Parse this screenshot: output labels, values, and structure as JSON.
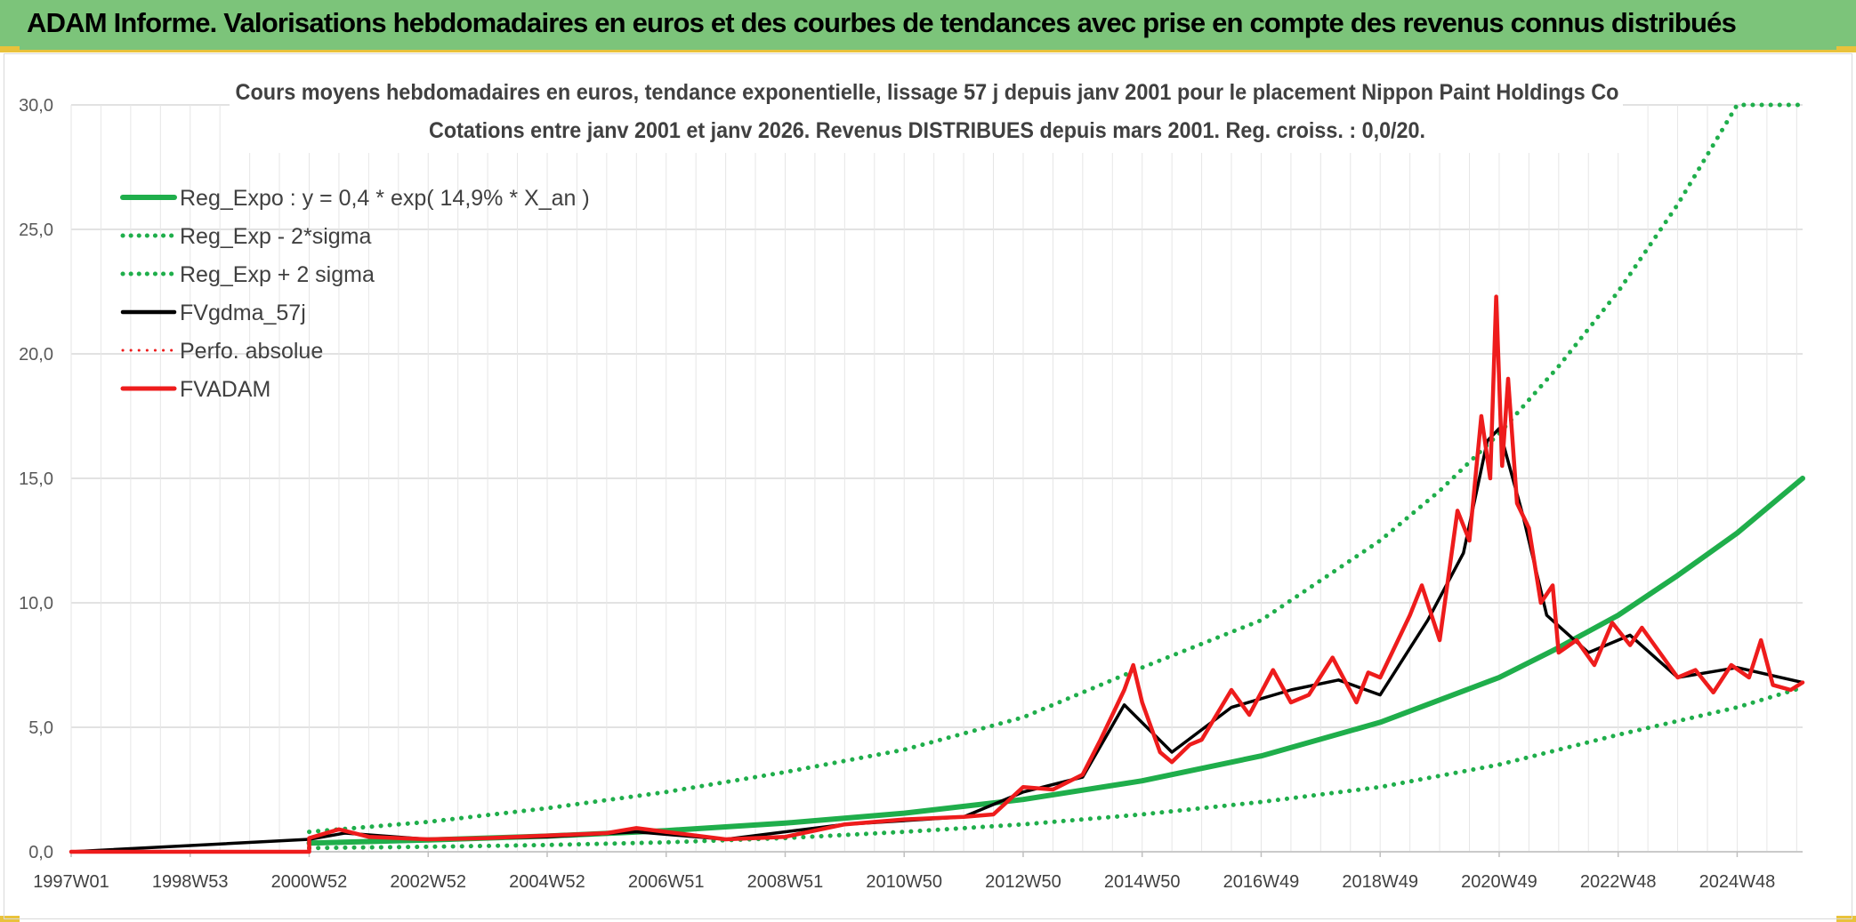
{
  "banner": {
    "text": "ADAM Informe. Valorisations hebdomadaires en euros et des courbes de tendances avec prise en compte des revenus connus distribués"
  },
  "colors": {
    "banner_bg": "#7cc47a",
    "accent_yellow": "#e9c23b",
    "reg_green": "#1fae4b",
    "price_red": "#ee1c1c",
    "smooth_black": "#000000",
    "grid": "#d9d9d9"
  },
  "chart_data": {
    "type": "line",
    "title_lines": [
      "Cours moyens hebdomadaires en euros, tendance exponentielle, lissage 57 j depuis janv 2001 pour le placement Nippon Paint Holdings Co",
      "Cotations entre janv 2001 et janv 2026. Revenus DISTRIBUES depuis mars 2001. Reg. croiss. : 0,0/20."
    ],
    "xlabel": "",
    "ylabel": "",
    "xlim": [
      1997.0,
      2026.1
    ],
    "ylim": [
      0,
      30
    ],
    "y_ticks": [
      "0,0",
      "5,0",
      "10,0",
      "15,0",
      "20,0",
      "25,0",
      "30,0"
    ],
    "x_tick_labels": [
      "1997W01",
      "1998W53",
      "2000W52",
      "2002W52",
      "2004W52",
      "2006W51",
      "2008W51",
      "2010W50",
      "2012W50",
      "2014W50",
      "2016W49",
      "2018W49",
      "2020W49",
      "2022W48",
      "2024W48"
    ],
    "x_tick_years": [
      1997.0,
      1999.0,
      2001.0,
      2003.0,
      2005.0,
      2007.0,
      2009.0,
      2011.0,
      2013.0,
      2015.0,
      2017.0,
      2019.0,
      2021.0,
      2023.0,
      2025.0
    ],
    "grid": true,
    "legend_position": "top-left",
    "series": [
      {
        "name": "Reg_Expo : y = 0,4 * exp( 14,9% *  X_an )",
        "style": "solid",
        "color": "#1fae4b",
        "x": [
          2001.0,
          2003.0,
          2005.0,
          2007.0,
          2009.0,
          2011.0,
          2013.0,
          2015.0,
          2017.0,
          2019.0,
          2021.0,
          2022.0,
          2023.0,
          2024.0,
          2025.0,
          2026.1
        ],
        "y": [
          0.35,
          0.47,
          0.63,
          0.85,
          1.15,
          1.55,
          2.1,
          2.85,
          3.85,
          5.2,
          7.0,
          8.2,
          9.5,
          11.1,
          12.8,
          15.0
        ]
      },
      {
        "name": "Reg_Exp - 2*sigma",
        "style": "dotted",
        "color": "#1fae4b",
        "x": [
          2001.0,
          2003.0,
          2005.0,
          2007.0,
          2009.0,
          2011.0,
          2013.0,
          2015.0,
          2017.0,
          2019.0,
          2021.0,
          2023.0,
          2025.0,
          2026.1
        ],
        "y": [
          0.15,
          0.2,
          0.27,
          0.38,
          0.55,
          0.8,
          1.1,
          1.5,
          2.0,
          2.6,
          3.5,
          4.7,
          5.8,
          6.6
        ]
      },
      {
        "name": "Reg_Exp + 2 sigma",
        "style": "dotted",
        "color": "#1fae4b",
        "x": [
          2001.0,
          2003.0,
          2005.0,
          2007.0,
          2009.0,
          2011.0,
          2013.0,
          2015.0,
          2017.0,
          2019.0,
          2020.0,
          2021.0,
          2022.0,
          2023.0,
          2024.0,
          2025.0,
          2026.1
        ],
        "y": [
          0.8,
          1.2,
          1.75,
          2.4,
          3.2,
          4.1,
          5.4,
          7.4,
          9.3,
          12.5,
          14.5,
          16.8,
          19.5,
          22.5,
          26.0,
          30.0,
          30.0
        ]
      },
      {
        "name": "FVgdma_57j",
        "style": "solid",
        "color": "#000000",
        "x": [
          1997.0,
          2001.0,
          2001.6,
          2003.0,
          2005.0,
          2006.5,
          2008.0,
          2010.0,
          2012.0,
          2013.0,
          2014.0,
          2014.7,
          2015.5,
          2016.5,
          2017.5,
          2018.3,
          2019.0,
          2019.8,
          2020.4,
          2020.8,
          2021.0,
          2021.4,
          2021.8,
          2022.5,
          2023.2,
          2024.0,
          2025.0,
          2026.1
        ],
        "y": [
          0.0,
          0.5,
          0.75,
          0.5,
          0.6,
          0.8,
          0.5,
          1.1,
          1.4,
          2.4,
          3.0,
          5.9,
          4.0,
          5.8,
          6.5,
          6.9,
          6.3,
          9.3,
          12.0,
          16.5,
          17.0,
          13.5,
          9.5,
          8.0,
          8.7,
          7.0,
          7.4,
          6.8
        ]
      },
      {
        "name": "Perfo. absolue",
        "style": "dotted",
        "color": "#ee1c1c",
        "x": [
          1997.0,
          2001.0,
          2001.6,
          2003.0,
          2005.0,
          2006.5,
          2008.0,
          2010.0,
          2012.0,
          2013.0,
          2014.0,
          2014.7,
          2015.5,
          2016.5,
          2017.5,
          2018.3,
          2019.0,
          2019.8,
          2020.4,
          2020.8,
          2021.0,
          2021.4,
          2021.8,
          2022.5,
          2023.2,
          2024.0,
          2025.0,
          2026.1
        ],
        "y": [
          0.0,
          0.5,
          0.75,
          0.5,
          0.6,
          0.8,
          0.5,
          1.1,
          1.4,
          2.4,
          3.0,
          5.9,
          4.0,
          5.8,
          6.5,
          6.9,
          6.3,
          9.3,
          12.0,
          16.5,
          17.0,
          13.5,
          9.5,
          8.0,
          8.7,
          7.0,
          7.4,
          6.8
        ]
      },
      {
        "name": "FVADAM",
        "style": "solid",
        "color": "#ee1c1c",
        "x": [
          1997.0,
          2001.0,
          2001.0,
          2001.5,
          2002.0,
          2003.0,
          2004.0,
          2005.0,
          2006.0,
          2006.5,
          2007.0,
          2008.0,
          2009.0,
          2010.0,
          2011.0,
          2012.0,
          2012.5,
          2013.0,
          2013.5,
          2014.0,
          2014.3,
          2014.7,
          2014.85,
          2015.0,
          2015.3,
          2015.5,
          2015.8,
          2016.0,
          2016.5,
          2016.8,
          2017.2,
          2017.5,
          2017.8,
          2018.2,
          2018.6,
          2018.8,
          2019.0,
          2019.5,
          2019.7,
          2020.0,
          2020.3,
          2020.5,
          2020.7,
          2020.85,
          2020.95,
          2021.05,
          2021.15,
          2021.3,
          2021.5,
          2021.7,
          2021.9,
          2022.0,
          2022.3,
          2022.6,
          2022.9,
          2023.2,
          2023.4,
          2023.7,
          2024.0,
          2024.3,
          2024.6,
          2024.9,
          2025.2,
          2025.4,
          2025.6,
          2025.9,
          2026.1
        ],
        "y": [
          0.0,
          0.0,
          0.55,
          0.9,
          0.6,
          0.5,
          0.55,
          0.65,
          0.75,
          0.95,
          0.8,
          0.5,
          0.6,
          1.1,
          1.3,
          1.4,
          1.5,
          2.6,
          2.5,
          3.1,
          4.5,
          6.5,
          7.5,
          6.0,
          4.0,
          3.6,
          4.3,
          4.5,
          6.5,
          5.5,
          7.3,
          6.0,
          6.3,
          7.8,
          6.0,
          7.2,
          7.0,
          9.5,
          10.7,
          8.5,
          13.7,
          12.5,
          17.5,
          15.0,
          22.3,
          15.5,
          19.0,
          14.0,
          13.0,
          10.0,
          10.7,
          8.0,
          8.5,
          7.5,
          9.2,
          8.3,
          9.0,
          8.0,
          7.0,
          7.3,
          6.4,
          7.5,
          7.0,
          8.5,
          6.7,
          6.5,
          6.8
        ]
      }
    ]
  }
}
